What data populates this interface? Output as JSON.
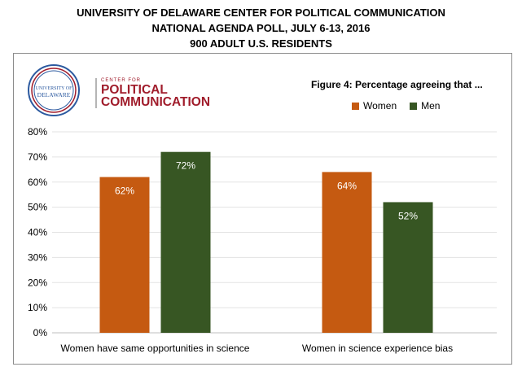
{
  "header": {
    "line1": "UNIVERSITY OF DELAWARE CENTER FOR POLITICAL COMMUNICATION",
    "line2": "NATIONAL AGENDA POLL, JULY 6-13, 2016",
    "line3": "900 ADULT U.S. RESIDENTS"
  },
  "logo": {
    "seal_line1": "UNIVERSITY OF",
    "seal_line2": "DELAWARE",
    "small": "CENTER FOR",
    "big1": "POLITICAL",
    "big2": "COMMUNICATION"
  },
  "chart_data": {
    "type": "bar",
    "title": "Figure 4: Percentage agreeing that ...",
    "categories": [
      "Women have same opportunities in science",
      "Women in science experience bias"
    ],
    "series": [
      {
        "name": "Women",
        "values": [
          62,
          64
        ],
        "color": "#c55a11",
        "labels": [
          "62%",
          "64%"
        ]
      },
      {
        "name": "Men",
        "values": [
          72,
          52
        ],
        "color": "#375623",
        "labels": [
          "72%",
          "52%"
        ]
      }
    ],
    "ylim": [
      0,
      80
    ],
    "yticks": [
      "0%",
      "10%",
      "20%",
      "30%",
      "40%",
      "50%",
      "60%",
      "70%",
      "80%"
    ],
    "grid": true,
    "legend": "top-right"
  }
}
